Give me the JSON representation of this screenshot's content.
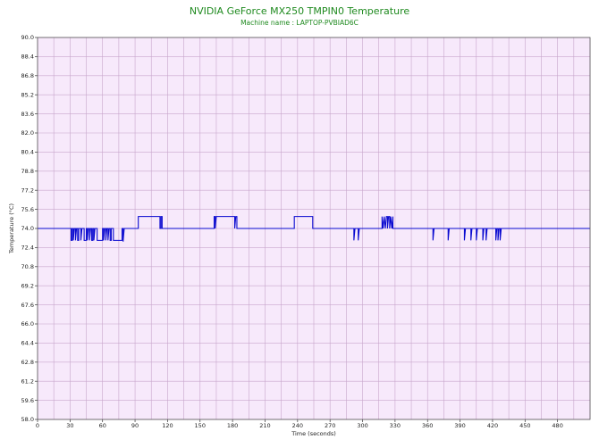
{
  "chart_data": {
    "type": "line",
    "title": "NVIDIA GeForce MX250 TMPIN0 Temperature",
    "subtitle": "Machine name : LAPTOP-PVBIAD6C",
    "xlabel": "Time (seconds)",
    "ylabel": "Temperature (°C)",
    "xlim": [
      0,
      510
    ],
    "ylim": [
      58.0,
      90.0
    ],
    "x_ticks": [
      0,
      30,
      60,
      90,
      120,
      150,
      180,
      210,
      240,
      270,
      300,
      330,
      360,
      390,
      420,
      450,
      480
    ],
    "y_ticks": [
      "58.0",
      "59.6",
      "61.2",
      "62.8",
      "64.4",
      "66.0",
      "67.6",
      "69.2",
      "70.8",
      "72.4",
      "74.0",
      "75.6",
      "77.2",
      "78.8",
      "80.4",
      "82.0",
      "83.6",
      "85.2",
      "86.8",
      "88.4",
      "90.0"
    ],
    "grid": true,
    "background": "#f7e9fb",
    "grid_color": "#c8a6cc",
    "series": [
      {
        "color": "#0a0ad0",
        "points": [
          [
            0,
            74.0
          ],
          [
            31,
            74.0
          ],
          [
            31,
            73.0
          ],
          [
            32,
            73.0
          ],
          [
            32,
            74.0
          ],
          [
            33,
            74.0
          ],
          [
            33,
            73.0
          ],
          [
            34,
            74.0
          ],
          [
            35,
            74.0
          ],
          [
            35,
            73.0
          ],
          [
            36,
            74.0
          ],
          [
            37,
            74.0
          ],
          [
            37,
            73.0
          ],
          [
            38,
            73.0
          ],
          [
            38,
            74.0
          ],
          [
            40,
            74.0
          ],
          [
            40,
            73.0
          ],
          [
            41,
            74.0
          ],
          [
            43,
            74.0
          ],
          [
            43,
            73.0
          ],
          [
            45,
            73.0
          ],
          [
            45,
            74.0
          ],
          [
            46,
            74.0
          ],
          [
            46,
            73.0
          ],
          [
            47,
            74.0
          ],
          [
            48,
            74.0
          ],
          [
            48,
            73.0
          ],
          [
            49,
            74.0
          ],
          [
            50,
            74.0
          ],
          [
            50,
            73.0
          ],
          [
            51,
            73.0
          ],
          [
            51,
            74.0
          ],
          [
            52,
            74.0
          ],
          [
            52,
            73.0
          ],
          [
            53,
            74.0
          ],
          [
            55,
            74.0
          ],
          [
            55,
            73.0
          ],
          [
            60,
            73.0
          ],
          [
            60,
            74.0
          ],
          [
            61,
            74.0
          ],
          [
            61,
            73.0
          ],
          [
            62,
            74.0
          ],
          [
            63,
            74.0
          ],
          [
            63,
            73.0
          ],
          [
            64,
            74.0
          ],
          [
            65,
            74.0
          ],
          [
            65,
            73.0
          ],
          [
            66,
            74.0
          ],
          [
            67,
            74.0
          ],
          [
            67,
            73.0
          ],
          [
            68,
            73.0
          ],
          [
            68,
            74.0
          ],
          [
            70,
            74.0
          ],
          [
            70,
            73.0
          ],
          [
            78,
            73.0
          ],
          [
            78,
            74.0
          ],
          [
            79,
            74.0
          ],
          [
            79,
            72.9
          ],
          [
            80,
            74.0
          ],
          [
            93,
            74.0
          ],
          [
            93,
            75.0
          ],
          [
            113,
            75.0
          ],
          [
            113,
            74.0
          ],
          [
            114,
            74.0
          ],
          [
            114,
            75.0
          ],
          [
            115,
            75.0
          ],
          [
            115,
            74.0
          ],
          [
            163,
            74.0
          ],
          [
            163,
            75.0
          ],
          [
            164,
            75.0
          ],
          [
            164,
            74.0
          ],
          [
            165,
            75.0
          ],
          [
            182,
            75.0
          ],
          [
            182,
            74.0
          ],
          [
            183,
            75.0
          ],
          [
            184,
            75.0
          ],
          [
            184,
            74.0
          ],
          [
            237,
            74.0
          ],
          [
            237,
            75.0
          ],
          [
            254,
            75.0
          ],
          [
            254,
            74.0
          ],
          [
            292,
            74.0
          ],
          [
            292,
            73.0
          ],
          [
            293,
            74.0
          ],
          [
            296,
            74.0
          ],
          [
            296,
            73.0
          ],
          [
            297,
            74.0
          ],
          [
            318,
            74.0
          ],
          [
            318,
            75.0
          ],
          [
            319,
            74.0
          ],
          [
            320,
            75.0
          ],
          [
            321,
            74.0
          ],
          [
            322,
            75.0
          ],
          [
            323,
            75.0
          ],
          [
            323,
            74.0
          ],
          [
            324,
            75.0
          ],
          [
            325,
            75.0
          ],
          [
            325,
            74.0
          ],
          [
            326,
            75.0
          ],
          [
            327,
            74.0
          ],
          [
            328,
            75.0
          ],
          [
            328,
            74.0
          ],
          [
            365,
            74.0
          ],
          [
            365,
            73.0
          ],
          [
            366,
            74.0
          ],
          [
            379,
            74.0
          ],
          [
            379,
            73.0
          ],
          [
            380,
            74.0
          ],
          [
            394,
            74.0
          ],
          [
            394,
            73.0
          ],
          [
            395,
            74.0
          ],
          [
            400,
            74.0
          ],
          [
            400,
            73.0
          ],
          [
            401,
            74.0
          ],
          [
            405,
            74.0
          ],
          [
            405,
            73.0
          ],
          [
            406,
            74.0
          ],
          [
            411,
            74.0
          ],
          [
            411,
            73.0
          ],
          [
            412,
            74.0
          ],
          [
            414,
            74.0
          ],
          [
            414,
            73.0
          ],
          [
            415,
            74.0
          ],
          [
            423,
            74.0
          ],
          [
            423,
            73.0
          ],
          [
            424,
            74.0
          ],
          [
            425,
            74.0
          ],
          [
            425,
            73.0
          ],
          [
            426,
            74.0
          ],
          [
            427,
            74.0
          ],
          [
            427,
            73.0
          ],
          [
            428,
            74.0
          ],
          [
            510,
            74.0
          ]
        ]
      }
    ]
  }
}
